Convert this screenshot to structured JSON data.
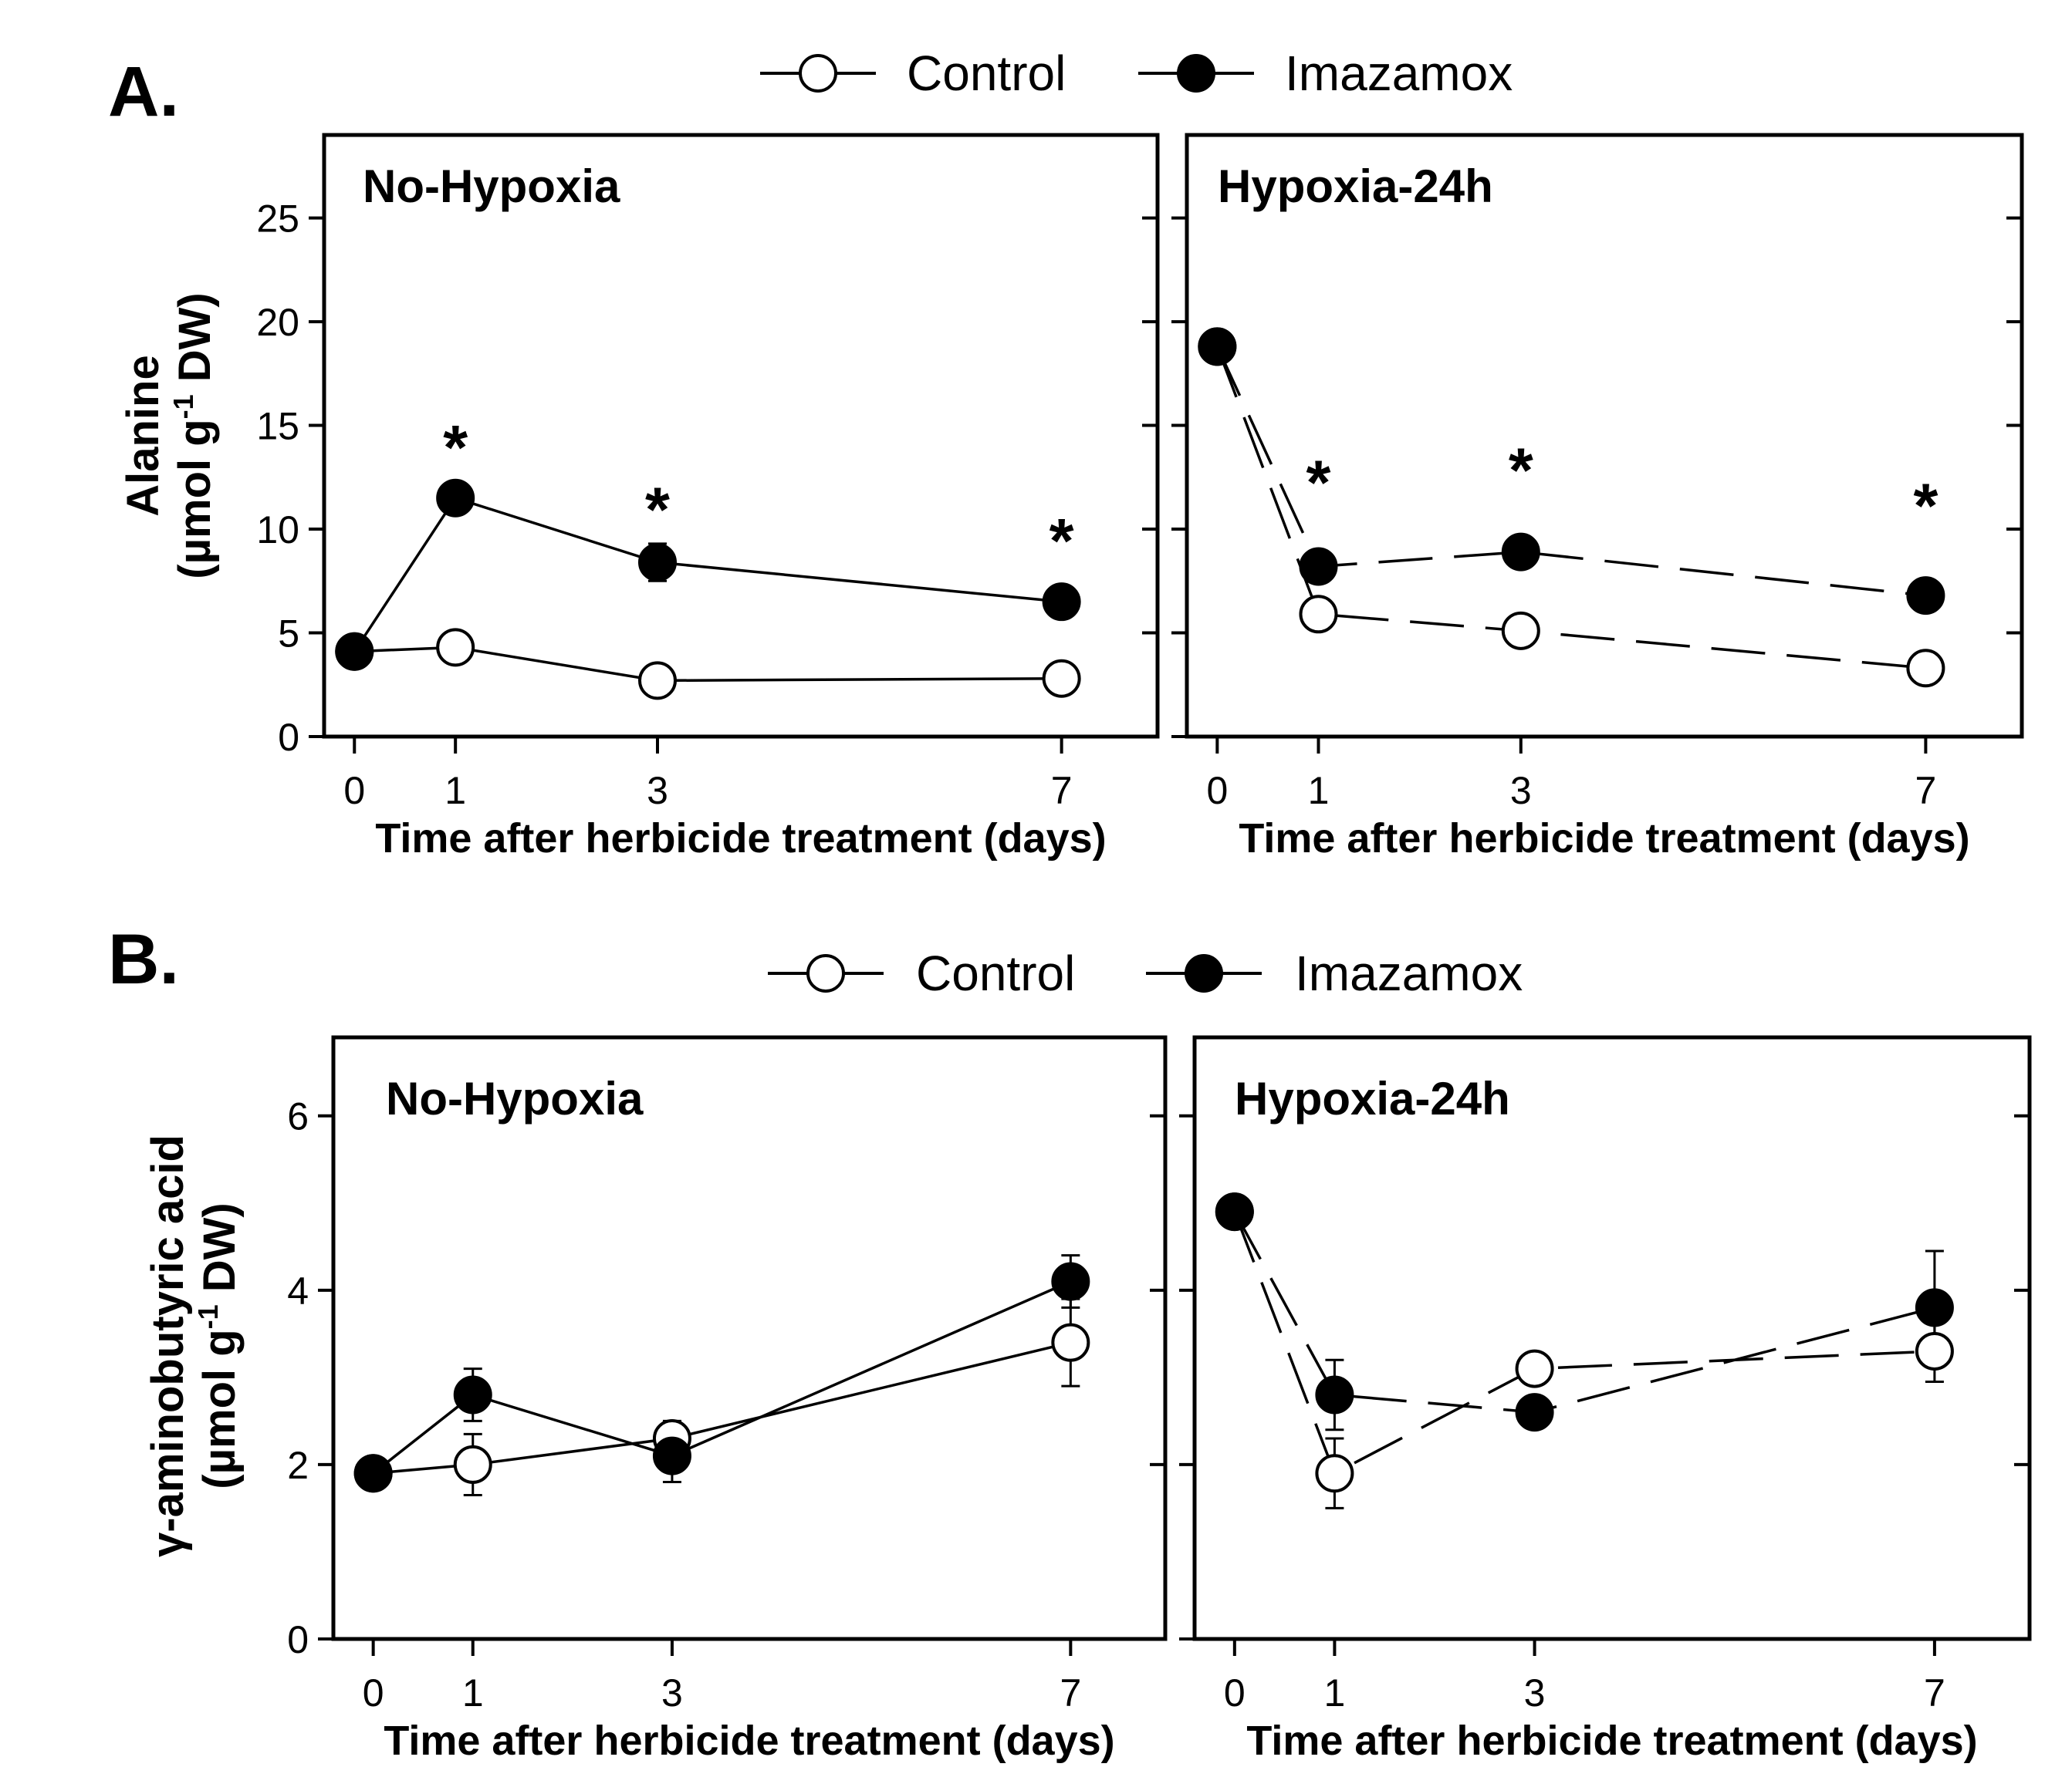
{
  "figure": {
    "legend": {
      "control_label": "Control",
      "imazamox_label": "Imazamox"
    },
    "xlabel": "Time after herbicide treatment (days)"
  },
  "chart_data": [
    {
      "type": "line",
      "panel_letter": "A.",
      "title": "No-Hypoxia",
      "ylabel_line1": "Alanine",
      "ylabel_line2": "(µmol g",
      "ylabel_sup": "-1",
      "ylabel_line2_end": " DW)",
      "x": [
        0,
        1,
        3,
        7
      ],
      "xticks": [
        0,
        1,
        3,
        7
      ],
      "xlim": [
        -0.3,
        7.95
      ],
      "ylim": [
        0,
        29
      ],
      "yticks": [
        0,
        5,
        10,
        15,
        20,
        25
      ],
      "line_style": "solid",
      "series": [
        {
          "name": "Control",
          "marker": "open",
          "values": [
            4.1,
            4.3,
            2.7,
            2.8
          ],
          "errors": [
            0.2,
            0.3,
            0.2,
            0.2
          ]
        },
        {
          "name": "Imazamox",
          "marker": "filled",
          "values": [
            4.1,
            11.5,
            8.4,
            6.5
          ],
          "errors": [
            0.2,
            0.4,
            0.9,
            0.4
          ]
        }
      ],
      "significance": [
        {
          "x": 1,
          "y": 14.0,
          "label": "*"
        },
        {
          "x": 3,
          "y": 11.0,
          "label": "*"
        },
        {
          "x": 7,
          "y": 9.5,
          "label": "*"
        }
      ]
    },
    {
      "type": "line",
      "title": "Hypoxia-24h",
      "x": [
        0,
        1,
        3,
        7
      ],
      "xticks": [
        0,
        1,
        3,
        7
      ],
      "xlim": [
        -0.3,
        7.95
      ],
      "ylim": [
        0,
        29
      ],
      "yticks": [
        0,
        5,
        10,
        15,
        20,
        25
      ],
      "line_style": "dashed",
      "series": [
        {
          "name": "Control",
          "marker": "open",
          "values": [
            18.8,
            5.9,
            5.1,
            3.3
          ],
          "errors": [
            0.3,
            0.3,
            0.3,
            0.3
          ]
        },
        {
          "name": "Imazamox",
          "marker": "filled",
          "values": [
            18.8,
            8.2,
            8.9,
            6.8
          ],
          "errors": [
            0.3,
            0.4,
            0.4,
            0.3
          ]
        }
      ],
      "significance": [
        {
          "x": 1,
          "y": 12.3,
          "label": "*"
        },
        {
          "x": 3,
          "y": 12.9,
          "label": "*"
        },
        {
          "x": 7,
          "y": 11.2,
          "label": "*"
        }
      ]
    },
    {
      "type": "line",
      "panel_letter": "B.",
      "title": "No-Hypoxia",
      "ylabel_line1": "γ-aminobutyric acid",
      "ylabel_line2": "(µmol g",
      "ylabel_sup": "-1",
      "ylabel_line2_end": " DW)",
      "x": [
        0,
        1,
        3,
        7
      ],
      "xticks": [
        0,
        1,
        3,
        7
      ],
      "xlim": [
        -0.4,
        7.95
      ],
      "ylim": [
        0,
        6.9
      ],
      "yticks": [
        0,
        2,
        4,
        6
      ],
      "line_style": "solid",
      "series": [
        {
          "name": "Control",
          "marker": "open",
          "values": [
            1.9,
            2.0,
            2.3,
            3.4
          ],
          "errors": [
            0.05,
            0.35,
            0.2,
            0.5
          ]
        },
        {
          "name": "Imazamox",
          "marker": "filled",
          "values": [
            1.9,
            2.8,
            2.1,
            4.1
          ],
          "errors": [
            0.05,
            0.3,
            0.3,
            0.3
          ]
        }
      ]
    },
    {
      "type": "line",
      "title": "Hypoxia-24h",
      "x": [
        0,
        1,
        3,
        7
      ],
      "xticks": [
        0,
        1,
        3,
        7
      ],
      "xlim": [
        -0.4,
        7.95
      ],
      "ylim": [
        0,
        6.9
      ],
      "yticks": [
        0,
        2,
        4,
        6
      ],
      "line_style": "dashed",
      "series": [
        {
          "name": "Control",
          "marker": "open",
          "values": [
            4.9,
            1.9,
            3.1,
            3.3
          ],
          "errors": [
            0.05,
            0.4,
            0.05,
            0.35
          ]
        },
        {
          "name": "Imazamox",
          "marker": "filled",
          "values": [
            4.9,
            2.8,
            2.6,
            3.8
          ],
          "errors": [
            0.05,
            0.4,
            0.05,
            0.65
          ]
        }
      ]
    }
  ]
}
